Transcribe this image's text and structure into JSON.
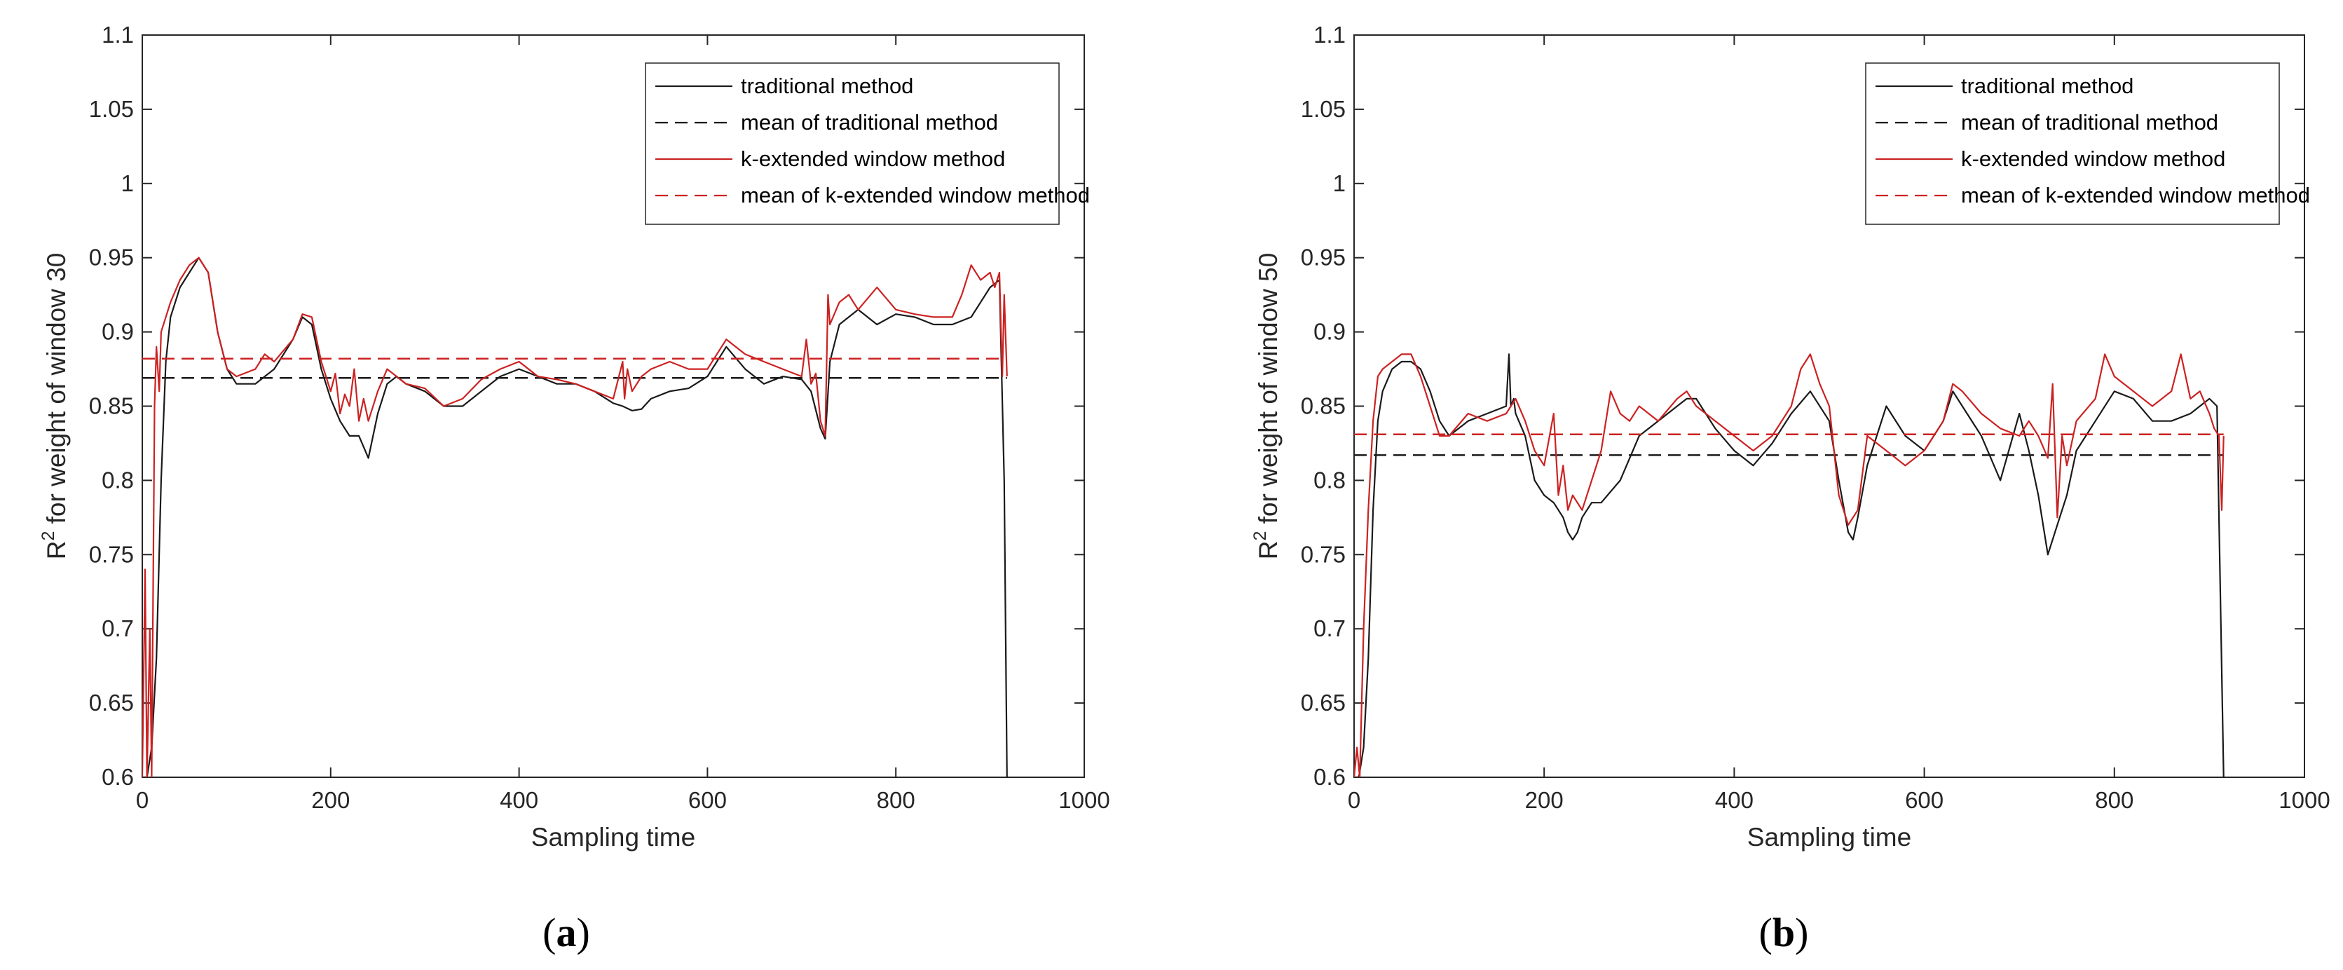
{
  "colors": {
    "traditional": "#1a1a1a",
    "k_extended": "#cc2222",
    "axis": "#262626"
  },
  "chart_data": [
    {
      "type": "line",
      "panel": "a",
      "caption_label": "a",
      "xlabel": "Sampling time",
      "ylabel_prefix": "R",
      "ylabel_sup": "2",
      "ylabel_rest": " for weight of window 30",
      "xlim": [
        0,
        1000
      ],
      "ylim": [
        0.6,
        1.1
      ],
      "xticks": [
        "0",
        "200",
        "400",
        "600",
        "800",
        "1000"
      ],
      "yticks": [
        "0.6",
        "0.65",
        "0.7",
        "0.75",
        "0.8",
        "0.85",
        "0.9",
        "0.95",
        "1",
        "1.05",
        "1.1"
      ],
      "grid": false,
      "legend_position": "top-right",
      "series": [
        {
          "name": "traditional method",
          "style": "solid",
          "color": "#1a1a1a",
          "x": [
            0,
            5,
            10,
            15,
            20,
            25,
            30,
            40,
            50,
            60,
            70,
            80,
            90,
            100,
            120,
            140,
            160,
            170,
            180,
            190,
            200,
            210,
            220,
            230,
            240,
            250,
            260,
            270,
            280,
            300,
            320,
            340,
            360,
            380,
            400,
            420,
            440,
            460,
            480,
            500,
            510,
            520,
            530,
            540,
            560,
            580,
            600,
            620,
            640,
            660,
            680,
            700,
            710,
            720,
            725,
            730,
            740,
            760,
            780,
            800,
            820,
            840,
            860,
            880,
            900,
            910,
            915,
            918
          ],
          "y": [
            0.6,
            0.6,
            0.62,
            0.68,
            0.8,
            0.88,
            0.91,
            0.93,
            0.94,
            0.95,
            0.94,
            0.9,
            0.875,
            0.865,
            0.865,
            0.875,
            0.895,
            0.91,
            0.905,
            0.875,
            0.855,
            0.84,
            0.83,
            0.83,
            0.815,
            0.845,
            0.865,
            0.87,
            0.865,
            0.86,
            0.85,
            0.85,
            0.86,
            0.87,
            0.875,
            0.87,
            0.865,
            0.865,
            0.86,
            0.852,
            0.85,
            0.847,
            0.848,
            0.855,
            0.86,
            0.862,
            0.87,
            0.89,
            0.875,
            0.865,
            0.87,
            0.868,
            0.86,
            0.835,
            0.828,
            0.88,
            0.905,
            0.915,
            0.905,
            0.912,
            0.91,
            0.905,
            0.905,
            0.91,
            0.93,
            0.935,
            0.8,
            0.6
          ]
        },
        {
          "name": "mean of traditional method",
          "style": "dashed",
          "color": "#1a1a1a",
          "x": [
            0,
            918
          ],
          "y": [
            0.869,
            0.869
          ]
        },
        {
          "name": "k-extended window method",
          "style": "solid",
          "color": "#cc2222",
          "x": [
            0,
            3,
            5,
            8,
            10,
            13,
            15,
            18,
            20,
            25,
            30,
            40,
            50,
            60,
            70,
            80,
            90,
            100,
            120,
            130,
            140,
            160,
            170,
            180,
            190,
            200,
            205,
            210,
            215,
            220,
            225,
            230,
            235,
            240,
            250,
            260,
            270,
            280,
            300,
            320,
            340,
            360,
            380,
            400,
            420,
            440,
            460,
            480,
            500,
            510,
            512,
            515,
            520,
            530,
            540,
            560,
            580,
            600,
            620,
            640,
            660,
            680,
            700,
            705,
            710,
            715,
            720,
            725,
            728,
            730,
            740,
            750,
            760,
            780,
            800,
            820,
            840,
            860,
            870,
            880,
            890,
            900,
            905,
            910,
            913,
            915,
            918
          ],
          "y": [
            0.6,
            0.74,
            0.6,
            0.7,
            0.6,
            0.85,
            0.89,
            0.86,
            0.9,
            0.91,
            0.92,
            0.935,
            0.945,
            0.95,
            0.94,
            0.9,
            0.875,
            0.87,
            0.875,
            0.885,
            0.88,
            0.895,
            0.912,
            0.91,
            0.88,
            0.86,
            0.872,
            0.845,
            0.858,
            0.85,
            0.875,
            0.84,
            0.855,
            0.84,
            0.86,
            0.875,
            0.87,
            0.865,
            0.862,
            0.85,
            0.855,
            0.868,
            0.875,
            0.88,
            0.87,
            0.868,
            0.865,
            0.86,
            0.855,
            0.88,
            0.855,
            0.875,
            0.86,
            0.87,
            0.875,
            0.88,
            0.875,
            0.875,
            0.895,
            0.885,
            0.88,
            0.875,
            0.87,
            0.895,
            0.865,
            0.872,
            0.84,
            0.83,
            0.925,
            0.905,
            0.92,
            0.925,
            0.915,
            0.93,
            0.915,
            0.912,
            0.91,
            0.91,
            0.925,
            0.945,
            0.935,
            0.94,
            0.93,
            0.94,
            0.87,
            0.925,
            0.87
          ]
        },
        {
          "name": "mean of k-extended window method",
          "style": "dashed",
          "color": "#cc2222",
          "x": [
            0,
            918
          ],
          "y": [
            0.882,
            0.882
          ]
        }
      ]
    },
    {
      "type": "line",
      "panel": "b",
      "caption_label": "b",
      "xlabel": "Sampling time",
      "ylabel_prefix": "R",
      "ylabel_sup": "2",
      "ylabel_rest": " for weight of window 50",
      "xlim": [
        0,
        1000
      ],
      "ylim": [
        0.6,
        1.1
      ],
      "xticks": [
        "0",
        "200",
        "400",
        "600",
        "800",
        "1000"
      ],
      "yticks": [
        "0.6",
        "0.65",
        "0.7",
        "0.75",
        "0.8",
        "0.85",
        "0.9",
        "0.95",
        "1",
        "1.05",
        "1.1"
      ],
      "grid": false,
      "legend_position": "top-right",
      "series": [
        {
          "name": "traditional method",
          "style": "solid",
          "color": "#1a1a1a",
          "x": [
            0,
            5,
            10,
            15,
            20,
            25,
            30,
            40,
            50,
            60,
            70,
            80,
            90,
            100,
            120,
            140,
            160,
            163,
            165,
            168,
            170,
            180,
            190,
            200,
            210,
            220,
            225,
            230,
            235,
            240,
            250,
            260,
            280,
            300,
            320,
            340,
            350,
            360,
            380,
            400,
            420,
            440,
            460,
            480,
            500,
            510,
            520,
            525,
            530,
            540,
            560,
            580,
            600,
            610,
            620,
            630,
            640,
            660,
            680,
            700,
            710,
            720,
            730,
            740,
            750,
            760,
            780,
            800,
            820,
            840,
            860,
            880,
            900,
            908,
            915
          ],
          "y": [
            0.6,
            0.6,
            0.62,
            0.68,
            0.78,
            0.84,
            0.86,
            0.875,
            0.88,
            0.88,
            0.875,
            0.86,
            0.84,
            0.83,
            0.84,
            0.845,
            0.85,
            0.885,
            0.85,
            0.855,
            0.845,
            0.83,
            0.8,
            0.79,
            0.785,
            0.775,
            0.765,
            0.76,
            0.765,
            0.775,
            0.785,
            0.785,
            0.8,
            0.83,
            0.84,
            0.85,
            0.855,
            0.855,
            0.835,
            0.82,
            0.81,
            0.825,
            0.845,
            0.86,
            0.84,
            0.8,
            0.765,
            0.76,
            0.775,
            0.81,
            0.85,
            0.83,
            0.82,
            0.83,
            0.84,
            0.86,
            0.85,
            0.83,
            0.8,
            0.845,
            0.82,
            0.79,
            0.75,
            0.77,
            0.79,
            0.82,
            0.84,
            0.86,
            0.855,
            0.84,
            0.84,
            0.845,
            0.855,
            0.85,
            0.6
          ]
        },
        {
          "name": "mean of traditional method",
          "style": "dashed",
          "color": "#1a1a1a",
          "x": [
            0,
            915
          ],
          "y": [
            0.817,
            0.817
          ]
        },
        {
          "name": "k-extended window method",
          "style": "dashed-solid",
          "color": "#cc2222",
          "x": [
            0,
            3,
            6,
            10,
            15,
            20,
            25,
            30,
            40,
            50,
            60,
            70,
            80,
            90,
            100,
            120,
            140,
            160,
            170,
            180,
            190,
            200,
            210,
            215,
            220,
            225,
            230,
            240,
            250,
            260,
            270,
            280,
            290,
            300,
            320,
            340,
            350,
            360,
            380,
            400,
            420,
            440,
            460,
            470,
            480,
            490,
            500,
            510,
            520,
            530,
            540,
            560,
            580,
            600,
            620,
            630,
            640,
            660,
            680,
            700,
            710,
            720,
            730,
            735,
            740,
            745,
            750,
            760,
            780,
            790,
            800,
            820,
            840,
            860,
            870,
            880,
            890,
            900,
            905,
            910,
            913,
            915
          ],
          "y": [
            0.6,
            0.62,
            0.6,
            0.7,
            0.78,
            0.84,
            0.87,
            0.875,
            0.88,
            0.885,
            0.885,
            0.87,
            0.85,
            0.83,
            0.83,
            0.845,
            0.84,
            0.845,
            0.855,
            0.84,
            0.82,
            0.81,
            0.845,
            0.79,
            0.81,
            0.78,
            0.79,
            0.78,
            0.8,
            0.82,
            0.86,
            0.845,
            0.84,
            0.85,
            0.84,
            0.855,
            0.86,
            0.85,
            0.84,
            0.83,
            0.82,
            0.83,
            0.85,
            0.875,
            0.885,
            0.865,
            0.85,
            0.79,
            0.77,
            0.78,
            0.83,
            0.82,
            0.81,
            0.82,
            0.84,
            0.865,
            0.86,
            0.845,
            0.835,
            0.83,
            0.84,
            0.83,
            0.815,
            0.865,
            0.775,
            0.83,
            0.81,
            0.84,
            0.855,
            0.885,
            0.87,
            0.86,
            0.85,
            0.86,
            0.885,
            0.855,
            0.86,
            0.845,
            0.835,
            0.83,
            0.78,
            0.83
          ]
        },
        {
          "name": "mean of k-extended window method",
          "style": "dashed",
          "color": "#cc2222",
          "x": [
            0,
            915
          ],
          "y": [
            0.831,
            0.831
          ]
        }
      ]
    }
  ]
}
